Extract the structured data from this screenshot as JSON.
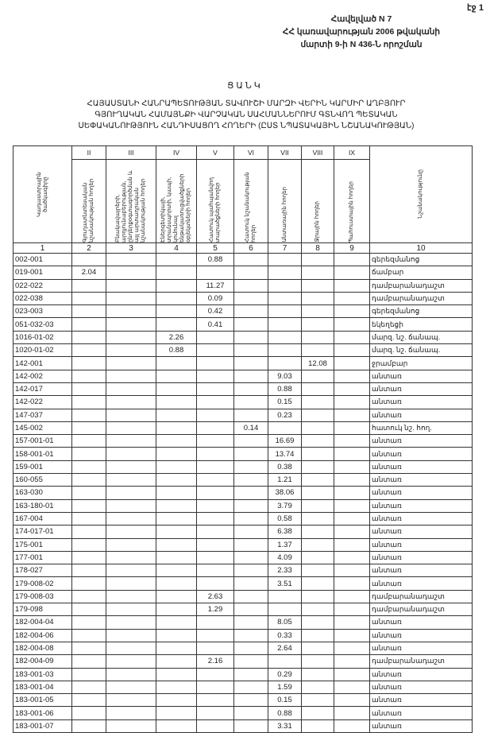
{
  "page_number": "էջ 1",
  "annex": [
    "Հավելված N 7",
    "ՀՀ կառավարության 2006 թվականի",
    "մարտի 9-ի N 436-Ն որոշման"
  ],
  "title": "ՑԱՆԿ",
  "subtitle": [
    "ՀԱՅԱՍՏԱՆԻ ՀԱՆՐԱՊԵՏՈՒԹՅԱՆ ՏԱՎՈՒՇԻ ՄԱՐԶԻ ՎԵՐԻՆ ԿԱՐՄԻՐ ԱՂԲՅՈՒՐ",
    "ԳՅՈՒՂԱԿԱՆ ՀԱՄԱՅՆՔԻ ՎԱՐՉԱԿԱՆ ՍԱՀՄԱՆՆԵՐՈՒՄ ԳՏՆՎՈՂ ՊԵՏԱԿԱՆ",
    "ՍԵՓԱԿԱՆՈՒԹՅՈՒՆ ՀԱՆԴԻՍԱՑՈՂ ՀՈՂԵՐԻ (ԸՍՏ ՆՊԱՏԱԿԱՅԻՆ ՆՇԱՆԱԿՈՒԹՅԱՆ)"
  ],
  "roman": [
    "",
    "II",
    "III",
    "IV",
    "V",
    "VI",
    "VII",
    "VIII",
    "IX",
    ""
  ],
  "headers": [
    "Կադաստրային ծածկագիրը",
    "Գյուղատնտեսական նշանակության հողեր",
    "Բնակավայրերի, արդյունաբերության, ընդերքօգտագործման և այլ արտադրական նշանակության հողեր",
    "Էներգետիկայի, տրանսպորտի, կապի, կոմունալ ենթակառուցվածքների օբյեկտների հողեր",
    "Հատուկ պահպանվող տարածքների հողեր",
    "Հատուկ նշանակության հողեր",
    "Անտառային հողեր",
    "Ջրային հողեր",
    "Պահուստային հողեր",
    "Նշանակությունը"
  ],
  "col_numbers": [
    "1",
    "2",
    "3",
    "4",
    "5",
    "6",
    "7",
    "8",
    "9",
    "10"
  ],
  "rows": [
    {
      "code": "002-001",
      "col": 5,
      "value": "0.88",
      "use": "գերեզմանոց"
    },
    {
      "code": "019-001",
      "col": 2,
      "value": "2.04",
      "use": "ճամբար"
    },
    {
      "code": "022-022",
      "col": 5,
      "value": "11.27",
      "use": "դամբարանադաշտ"
    },
    {
      "code": "022-038",
      "col": 5,
      "value": "0.09",
      "use": "դամբարանադաշտ"
    },
    {
      "code": "023-003",
      "col": 5,
      "value": "0.42",
      "use": "գերեզմանոց"
    },
    {
      "code": "051-032-03",
      "col": 5,
      "value": "0.41",
      "use": "եկեղեցի"
    },
    {
      "code": "1016-01-02",
      "col": 4,
      "value": "2.26",
      "use": "մարզ. նշ. ճանապ."
    },
    {
      "code": "1020-01-02",
      "col": 4,
      "value": "0.88",
      "use": "մարզ. նշ. ճանապ."
    },
    {
      "code": "142-001",
      "col": 8,
      "value": "12.08",
      "use": "ջրամբար"
    },
    {
      "code": "142-002",
      "col": 7,
      "value": "9.03",
      "use": "անտառ"
    },
    {
      "code": "142-017",
      "col": 7,
      "value": "0.88",
      "use": "անտառ"
    },
    {
      "code": "142-022",
      "col": 7,
      "value": "0.15",
      "use": "անտառ"
    },
    {
      "code": "147-037",
      "col": 7,
      "value": "0.23",
      "use": "անտառ"
    },
    {
      "code": "145-002",
      "col": 6,
      "value": "0.14",
      "use": "հատուկ նշ. հող."
    },
    {
      "code": "157-001-01",
      "col": 7,
      "value": "16.69",
      "use": "անտառ"
    },
    {
      "code": "158-001-01",
      "col": 7,
      "value": "13.74",
      "use": "անտառ"
    },
    {
      "code": "159-001",
      "col": 7,
      "value": "0.38",
      "use": "անտառ"
    },
    {
      "code": "160-055",
      "col": 7,
      "value": "1.21",
      "use": "անտառ"
    },
    {
      "code": "163-030",
      "col": 7,
      "value": "38.06",
      "use": "անտառ"
    },
    {
      "code": "163-180-01",
      "col": 7,
      "value": "3.79",
      "use": "անտառ"
    },
    {
      "code": "167-004",
      "col": 7,
      "value": "0.58",
      "use": "անտառ"
    },
    {
      "code": "174-017-01",
      "col": 7,
      "value": "6.38",
      "use": "անտառ"
    },
    {
      "code": "175-001",
      "col": 7,
      "value": "1.37",
      "use": "անտառ"
    },
    {
      "code": "177-001",
      "col": 7,
      "value": "4.09",
      "use": "անտառ"
    },
    {
      "code": "178-027",
      "col": 7,
      "value": "2.33",
      "use": "անտառ"
    },
    {
      "code": "179-008-02",
      "col": 7,
      "value": "3.51",
      "use": "անտառ"
    },
    {
      "code": "179-008-03",
      "col": 5,
      "value": "2.63",
      "use": "դամբարանադաշտ"
    },
    {
      "code": "179-098",
      "col": 5,
      "value": "1.29",
      "use": "դամբարանադաշտ"
    },
    {
      "code": "182-004-04",
      "col": 7,
      "value": "8.05",
      "use": "անտառ"
    },
    {
      "code": "182-004-06",
      "col": 7,
      "value": "0.33",
      "use": "անտառ"
    },
    {
      "code": "182-004-08",
      "col": 7,
      "value": "2.64",
      "use": "անտառ"
    },
    {
      "code": "182-004-09",
      "col": 5,
      "value": "2.16",
      "use": "դամբարանադաշտ"
    },
    {
      "code": "183-001-03",
      "col": 7,
      "value": "0.29",
      "use": "անտառ"
    },
    {
      "code": "183-001-04",
      "col": 7,
      "value": "1.59",
      "use": "անտառ"
    },
    {
      "code": "183-001-05",
      "col": 7,
      "value": "0.15",
      "use": "անտառ"
    },
    {
      "code": "183-001-06",
      "col": 7,
      "value": "0.88",
      "use": "անտառ"
    },
    {
      "code": "183-001-07",
      "col": 7,
      "value": "3.31",
      "use": "անտառ"
    }
  ]
}
